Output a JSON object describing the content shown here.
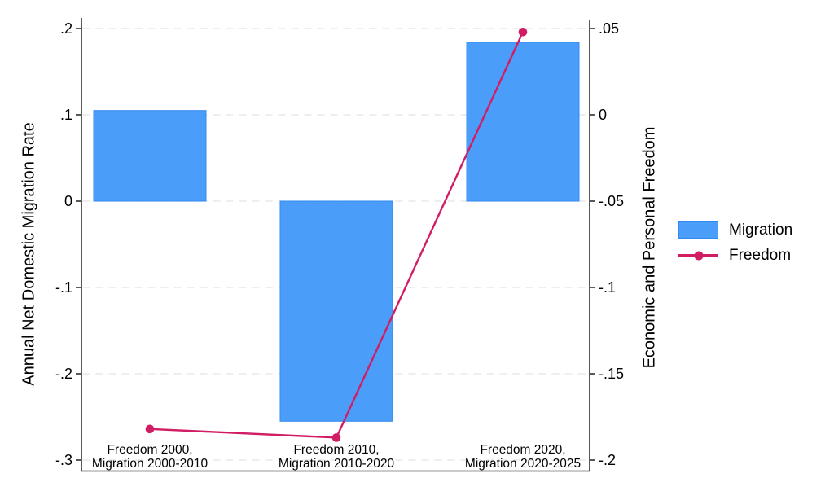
{
  "colors": {
    "bar_fill": "#4a9df8",
    "bar_border": "#338af0",
    "line": "#d11d64",
    "grid": "#e4e4e4",
    "axis": "#303030",
    "text": "#000000",
    "background": "#ffffff"
  },
  "chart_data": {
    "type": "combo-bar-line-dual-axis",
    "categories": [
      [
        "Freedom 2000,",
        "Migration 2000-2010"
      ],
      [
        "Freedom 2010,",
        "Migration 2010-2020"
      ],
      [
        "Freedom 2020,",
        "Migration 2020-2025"
      ]
    ],
    "series": [
      {
        "name": "Migration",
        "type": "bar",
        "axis": "left",
        "values": [
          0.105,
          -0.255,
          0.184
        ]
      },
      {
        "name": "Freedom",
        "type": "line",
        "axis": "right",
        "values": [
          -0.182,
          -0.187,
          0.048
        ]
      }
    ],
    "left_axis": {
      "label": "Annual Net Domestic Migration Rate",
      "range": [
        -0.3,
        0.2
      ],
      "tick_values": [
        0.2,
        0.1,
        0,
        -0.1,
        -0.2,
        -0.3
      ],
      "tick_labels": [
        ".2",
        ".1",
        "0",
        "-.1",
        "-.2",
        "-.3"
      ]
    },
    "right_axis": {
      "label": "Economic and Personal Freedom",
      "range": [
        -0.2,
        0.05
      ],
      "tick_values": [
        0.05,
        0,
        -0.05,
        -0.1,
        -0.15,
        -0.2
      ],
      "tick_labels": [
        ".05",
        "0",
        "-.05",
        "-.1",
        "-.15",
        "-.2"
      ]
    },
    "grid": "horizontal-dashed",
    "legend_position": "right-middle"
  }
}
